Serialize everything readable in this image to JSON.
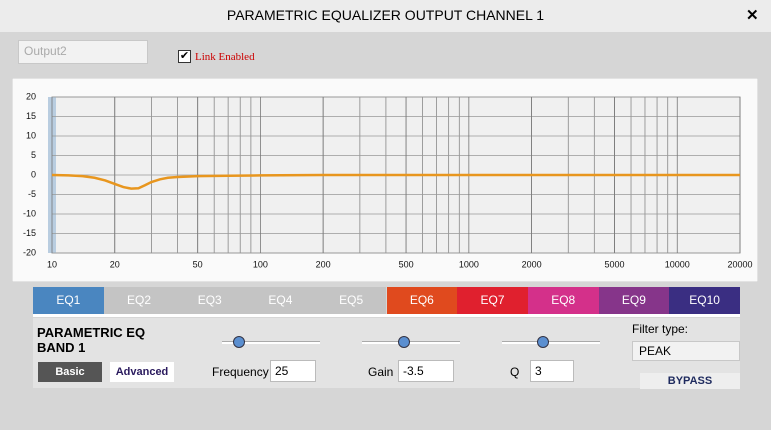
{
  "window": {
    "title": "PARAMETRIC EQUALIZER OUTPUT CHANNEL 1",
    "close": "✕"
  },
  "output_field": "Output2",
  "link": {
    "label": "Link Enabled",
    "checked": true
  },
  "chart_data": {
    "type": "line",
    "x_scale": "log",
    "grid": true,
    "xlim": [
      10,
      20000
    ],
    "ylim": [
      -20,
      20
    ],
    "xticks": [
      10,
      20,
      50,
      100,
      200,
      500,
      1000,
      2000,
      5000,
      10000,
      20000
    ],
    "yticks": [
      20,
      15,
      10,
      5,
      0,
      -5,
      -10,
      -15,
      -20
    ],
    "x": [
      10,
      12,
      14,
      16,
      18,
      20,
      22,
      24,
      26,
      28,
      30,
      33,
      36,
      40,
      50,
      70,
      100,
      200,
      20000
    ],
    "series": [
      {
        "color": "#e8961e",
        "values": [
          0,
          -0.1,
          -0.3,
          -0.7,
          -1.4,
          -2.3,
          -3.1,
          -3.5,
          -3.4,
          -2.6,
          -1.8,
          -1.1,
          -0.7,
          -0.5,
          -0.3,
          -0.2,
          -0.1,
          0,
          0
        ]
      }
    ]
  },
  "tabs": [
    {
      "label": "EQ1",
      "color": "#4a86c0"
    },
    {
      "label": "EQ2",
      "color": "#c4c4c4"
    },
    {
      "label": "EQ3",
      "color": "#c4c4c4"
    },
    {
      "label": "EQ4",
      "color": "#c4c4c4"
    },
    {
      "label": "EQ5",
      "color": "#c4c4c4"
    },
    {
      "label": "EQ6",
      "color": "#e04a1e"
    },
    {
      "label": "EQ7",
      "color": "#e0202e"
    },
    {
      "label": "EQ8",
      "color": "#d4308a"
    },
    {
      "label": "EQ9",
      "color": "#86358a"
    },
    {
      "label": "EQ10",
      "color": "#3a2e82"
    }
  ],
  "band": {
    "title": "PARAMETRIC EQ BAND 1",
    "basic": "Basic",
    "advanced": "Advanced",
    "frequency": {
      "label": "Frequency",
      "value": "25"
    },
    "gain": {
      "label": "Gain",
      "value": "-3.5"
    },
    "q": {
      "label": "Q",
      "value": "3"
    },
    "filter_label": "Filter type:",
    "filter_type": "PEAK",
    "bypass": "BYPASS"
  }
}
